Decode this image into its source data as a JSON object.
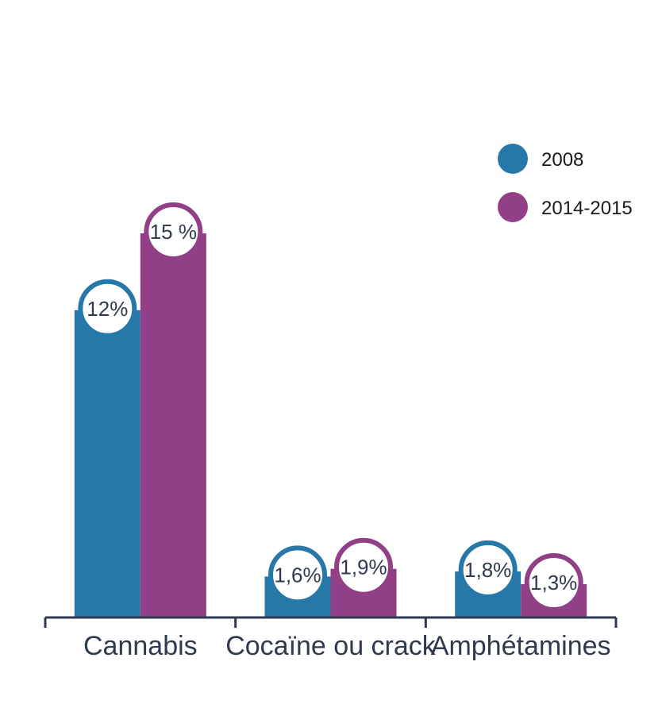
{
  "chart_data": {
    "type": "bar",
    "categories": [
      "Cannabis",
      "Cocaïne ou crack",
      "Amphétamines"
    ],
    "series": [
      {
        "name": "2008",
        "values": [
          12,
          1.6,
          1.8
        ],
        "labels": [
          "12%",
          "1,6%",
          "1,8%"
        ],
        "color": "#2778a8"
      },
      {
        "name": "2014-2015",
        "values": [
          15,
          1.9,
          1.3
        ],
        "labels": [
          "15 %",
          "1,9%",
          "1,3%"
        ],
        "color": "#913f87"
      }
    ],
    "title": "",
    "xlabel": "",
    "ylabel": "",
    "ylim": [
      0,
      15
    ],
    "grid": false,
    "legend": "top-right",
    "axis_color": "#2f3a4f"
  }
}
